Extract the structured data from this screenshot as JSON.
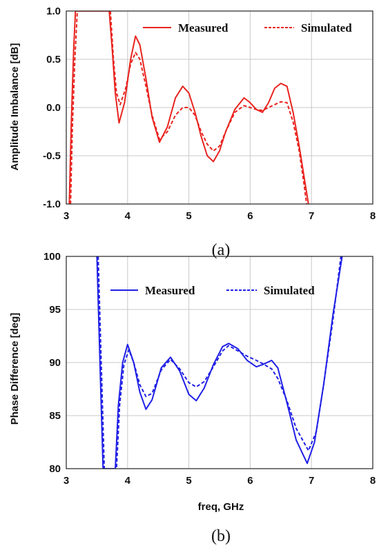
{
  "chart_data": [
    {
      "type": "line",
      "caption": "(a)",
      "title": "",
      "xlabel": "",
      "ylabel": "Amplitude Imbalance [dB]",
      "xlim": [
        3,
        8
      ],
      "ylim": [
        -1.0,
        1.0
      ],
      "xticks": [
        "3",
        "4",
        "5",
        "6",
        "7",
        "8"
      ],
      "yticks": [
        "1.0",
        "0.5",
        "0.0",
        "-0.5",
        "-1.0"
      ],
      "grid": true,
      "legend": "top",
      "series": [
        {
          "name": "Measured",
          "color": "#e8231e",
          "dash": "solid",
          "x": [
            3.05,
            3.08,
            3.12,
            3.15,
            3.7,
            3.75,
            3.8,
            3.86,
            3.95,
            4.05,
            4.13,
            4.2,
            4.3,
            4.4,
            4.52,
            4.65,
            4.78,
            4.9,
            5.0,
            5.1,
            5.2,
            5.3,
            5.4,
            5.5,
            5.6,
            5.75,
            5.9,
            6.0,
            6.1,
            6.2,
            6.3,
            6.4,
            6.5,
            6.6,
            6.7,
            6.8,
            6.9,
            6.95
          ],
          "y": [
            -1.0,
            -0.2,
            0.6,
            1.0,
            1.0,
            0.6,
            0.15,
            -0.16,
            0.05,
            0.5,
            0.74,
            0.65,
            0.3,
            -0.1,
            -0.36,
            -0.2,
            0.1,
            0.22,
            0.15,
            -0.05,
            -0.3,
            -0.5,
            -0.56,
            -0.45,
            -0.25,
            -0.02,
            0.1,
            0.05,
            -0.02,
            -0.05,
            0.05,
            0.2,
            0.25,
            0.22,
            -0.05,
            -0.4,
            -0.8,
            -1.0
          ]
        },
        {
          "name": "Simulated",
          "color": "#e8231e",
          "dash": "dashed",
          "x": [
            3.07,
            3.1,
            3.14,
            3.18,
            3.72,
            3.77,
            3.82,
            3.88,
            3.97,
            4.05,
            4.13,
            4.2,
            4.3,
            4.4,
            4.52,
            4.65,
            4.78,
            4.9,
            5.0,
            5.1,
            5.2,
            5.3,
            5.4,
            5.5,
            5.6,
            5.75,
            5.9,
            6.0,
            6.1,
            6.2,
            6.3,
            6.4,
            6.5,
            6.6,
            6.7,
            6.8,
            6.88,
            6.92
          ],
          "y": [
            -1.0,
            -0.2,
            0.5,
            1.0,
            1.0,
            0.5,
            0.15,
            0.03,
            0.2,
            0.45,
            0.57,
            0.5,
            0.22,
            -0.08,
            -0.33,
            -0.25,
            -0.08,
            0.0,
            0.0,
            -0.08,
            -0.25,
            -0.38,
            -0.45,
            -0.4,
            -0.25,
            -0.05,
            0.02,
            0.0,
            -0.02,
            -0.03,
            0.0,
            0.03,
            0.06,
            0.05,
            -0.15,
            -0.45,
            -0.8,
            -1.0
          ]
        }
      ]
    },
    {
      "type": "line",
      "caption": "(b)",
      "title": "",
      "xlabel": "freq, GHz",
      "ylabel": "Phase Difference [deg]",
      "xlim": [
        3,
        8
      ],
      "ylim": [
        80,
        100
      ],
      "xticks": [
        "3",
        "4",
        "5",
        "6",
        "7",
        "8"
      ],
      "yticks": [
        "100",
        "95",
        "90",
        "85",
        "80"
      ],
      "grid": true,
      "legend": "top",
      "series": [
        {
          "name": "Measured",
          "color": "#1f1fe6",
          "dash": "solid",
          "x": [
            3.5,
            3.55,
            3.6,
            3.8,
            3.85,
            3.92,
            4.0,
            4.1,
            4.2,
            4.3,
            4.4,
            4.55,
            4.7,
            4.85,
            5.0,
            5.12,
            5.25,
            5.4,
            5.55,
            5.65,
            5.8,
            5.95,
            6.1,
            6.2,
            6.35,
            6.45,
            6.6,
            6.75,
            6.93,
            7.05,
            7.2,
            7.35,
            7.5
          ],
          "y": [
            100,
            90,
            80,
            80,
            86,
            90,
            91.7,
            90,
            87.2,
            85.6,
            86.5,
            89.5,
            90.5,
            89.2,
            87,
            86.4,
            87.6,
            89.8,
            91.5,
            91.8,
            91.3,
            90.2,
            89.6,
            89.8,
            90.2,
            89.5,
            86.2,
            82.7,
            80.5,
            82.5,
            88,
            94.5,
            100
          ]
        },
        {
          "name": "Simulated",
          "color": "#1f1fe6",
          "dash": "dashed",
          "x": [
            3.52,
            3.57,
            3.62,
            3.82,
            3.87,
            3.94,
            4.02,
            4.1,
            4.2,
            4.3,
            4.4,
            4.55,
            4.7,
            4.85,
            5.0,
            5.12,
            5.25,
            5.4,
            5.55,
            5.65,
            5.8,
            5.95,
            6.1,
            6.2,
            6.35,
            6.45,
            6.6,
            6.75,
            6.95,
            7.08,
            7.2,
            7.35,
            7.48
          ],
          "y": [
            100,
            90,
            80,
            80,
            86,
            89.8,
            91.2,
            90,
            87.9,
            86.8,
            87.1,
            89.3,
            90.3,
            89.4,
            88.1,
            87.7,
            88.2,
            89.6,
            91.1,
            91.6,
            91.1,
            90.6,
            90.2,
            89.9,
            89.4,
            88.5,
            86.4,
            83.8,
            81.7,
            83.5,
            88,
            94,
            100
          ]
        }
      ]
    }
  ]
}
